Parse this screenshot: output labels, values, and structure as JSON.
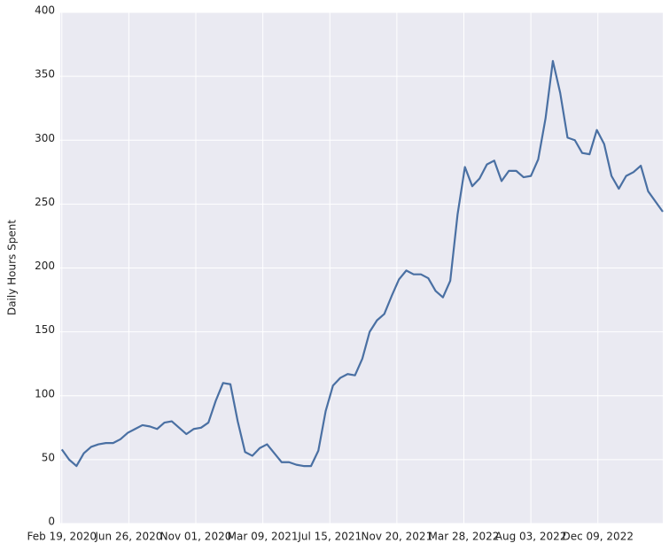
{
  "chart_data": {
    "type": "line",
    "y_label": "Daily Hours Spent",
    "x": [
      "2020-02-19",
      "2020-03-04",
      "2020-03-18",
      "2020-04-01",
      "2020-04-15",
      "2020-04-29",
      "2020-05-13",
      "2020-05-27",
      "2020-06-10",
      "2020-06-24",
      "2020-07-08",
      "2020-07-22",
      "2020-08-05",
      "2020-08-19",
      "2020-09-02",
      "2020-09-16",
      "2020-09-30",
      "2020-10-14",
      "2020-10-28",
      "2020-11-11",
      "2020-11-25",
      "2020-12-09",
      "2020-12-23",
      "2021-01-06",
      "2021-01-20",
      "2021-02-03",
      "2021-02-17",
      "2021-03-03",
      "2021-03-17",
      "2021-03-31",
      "2021-04-14",
      "2021-04-28",
      "2021-05-12",
      "2021-05-26",
      "2021-06-09",
      "2021-06-23",
      "2021-07-07",
      "2021-07-21",
      "2021-08-04",
      "2021-08-18",
      "2021-09-01",
      "2021-09-15",
      "2021-09-29",
      "2021-10-13",
      "2021-10-27",
      "2021-11-10",
      "2021-11-24",
      "2021-12-08",
      "2021-12-22",
      "2022-01-05",
      "2022-01-19",
      "2022-02-02",
      "2022-02-16",
      "2022-03-02",
      "2022-03-16",
      "2022-03-30",
      "2022-04-13",
      "2022-04-27",
      "2022-05-11",
      "2022-05-25",
      "2022-06-08",
      "2022-06-22",
      "2022-07-06",
      "2022-07-20",
      "2022-08-03",
      "2022-08-17",
      "2022-08-31",
      "2022-09-14",
      "2022-09-28",
      "2022-10-12",
      "2022-10-26",
      "2022-11-09",
      "2022-11-23",
      "2022-12-07",
      "2022-12-21",
      "2023-01-04",
      "2023-01-18",
      "2023-02-01",
      "2023-02-15",
      "2023-03-01",
      "2023-03-15",
      "2023-03-29",
      "2023-04-12"
    ],
    "series": [
      {
        "name": "Daily Hours Spent",
        "color": "#4a70a3",
        "values": [
          58,
          50,
          45,
          55,
          60,
          62,
          63,
          63,
          66,
          71,
          74,
          77,
          76,
          74,
          79,
          80,
          75,
          70,
          74,
          75,
          79,
          96,
          110,
          109,
          80,
          56,
          53,
          59,
          62,
          55,
          48,
          48,
          46,
          45,
          45,
          57,
          88,
          108,
          114,
          117,
          116,
          129,
          150,
          159,
          164,
          178,
          191,
          198,
          195,
          195,
          192,
          182,
          177,
          190,
          242,
          279,
          264,
          270,
          281,
          284,
          268,
          276,
          276,
          271,
          272,
          285,
          317,
          362,
          337,
          302,
          300,
          290,
          289,
          308,
          297,
          272,
          262,
          272,
          275,
          280,
          260,
          252,
          244
        ]
      }
    ],
    "xlim": [
      "2020-02-16",
      "2023-04-12"
    ],
    "xticks": [
      {
        "value": "2020-02-19",
        "label": "Feb 19, 2020"
      },
      {
        "value": "2020-06-26",
        "label": "Jun 26, 2020"
      },
      {
        "value": "2020-11-01",
        "label": "Nov 01, 2020"
      },
      {
        "value": "2021-03-09",
        "label": "Mar 09, 2021"
      },
      {
        "value": "2021-07-15",
        "label": "Jul 15, 2021"
      },
      {
        "value": "2021-11-20",
        "label": "Nov 20, 2021"
      },
      {
        "value": "2022-03-28",
        "label": "Mar 28, 2022"
      },
      {
        "value": "2022-08-03",
        "label": "Aug 03, 2022"
      },
      {
        "value": "2022-12-09",
        "label": "Dec 09, 2022"
      }
    ],
    "ylim": [
      0,
      400
    ],
    "yticks": [
      0,
      50,
      100,
      150,
      200,
      250,
      300,
      350,
      400
    ],
    "grid": true
  }
}
